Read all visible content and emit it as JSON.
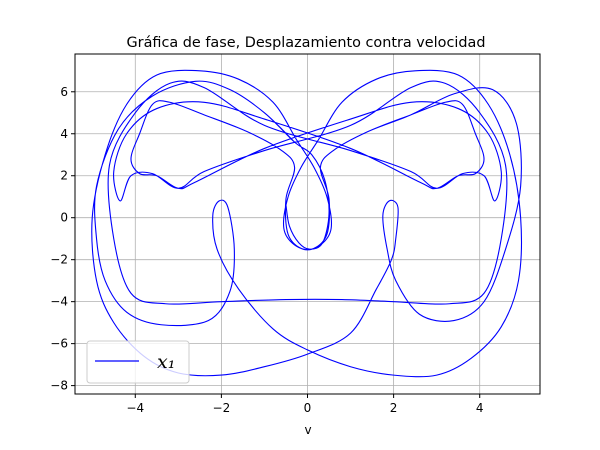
{
  "chart_data": {
    "type": "line",
    "title": "Gráfica de fase, Desplazamiento contra velocidad",
    "xlabel": "v",
    "ylabel": "",
    "xlim": [
      -5.4,
      5.4
    ],
    "ylim": [
      -8.4,
      7.8
    ],
    "xticks": [
      -4,
      -2,
      0,
      2,
      4
    ],
    "yticks": [
      -8,
      -6,
      -4,
      -2,
      0,
      2,
      4,
      6
    ],
    "grid": true,
    "legend_position": "lower-left",
    "series": [
      {
        "name": "x₁",
        "color": "#0000ff",
        "points": [
          [
            -0.5,
            0.6
          ],
          [
            -0.42,
            -0.4
          ],
          [
            -0.2,
            -1.2
          ],
          [
            0.05,
            -1.5
          ],
          [
            0.35,
            -1.2
          ],
          [
            0.5,
            0.2
          ],
          [
            0.4,
            1.8
          ],
          [
            0.1,
            3.0
          ],
          [
            -0.3,
            3.6
          ],
          [
            -1.0,
            5.0
          ],
          [
            -1.8,
            6.1
          ],
          [
            -2.6,
            6.5
          ],
          [
            -3.6,
            5.8
          ],
          [
            -4.4,
            4.2
          ],
          [
            -4.9,
            1.5
          ],
          [
            -4.9,
            -1.0
          ],
          [
            -4.7,
            -3.0
          ],
          [
            -4.2,
            -4.5
          ],
          [
            -3.4,
            -5.1
          ],
          [
            -2.3,
            -4.9
          ],
          [
            -1.8,
            -3.5
          ],
          [
            -1.7,
            -1.5
          ],
          [
            -1.85,
            0.5
          ],
          [
            -2.05,
            0.8
          ],
          [
            -2.2,
            0.1
          ],
          [
            -2.1,
            -1.5
          ],
          [
            -1.6,
            -3.4
          ],
          [
            -0.8,
            -5.3
          ],
          [
            0.0,
            -6.3
          ],
          [
            1.0,
            -7.1
          ],
          [
            2.0,
            -7.5
          ],
          [
            3.0,
            -7.5
          ],
          [
            3.8,
            -6.7
          ],
          [
            4.5,
            -5.2
          ],
          [
            4.9,
            -3.0
          ],
          [
            4.95,
            0.0
          ],
          [
            4.7,
            3.0
          ],
          [
            4.2,
            5.4
          ],
          [
            3.5,
            6.8
          ],
          [
            2.5,
            7.0
          ],
          [
            1.6,
            6.6
          ],
          [
            0.8,
            5.5
          ],
          [
            0.25,
            3.7
          ],
          [
            -0.15,
            2.4
          ],
          [
            -0.45,
            1.0
          ],
          [
            -0.55,
            -0.5
          ],
          [
            -0.3,
            -1.3
          ],
          [
            0.1,
            -1.5
          ],
          [
            0.45,
            -0.8
          ],
          [
            0.5,
            0.9
          ],
          [
            0.3,
            2.4
          ],
          [
            0.6,
            3.2
          ],
          [
            1.4,
            4.1
          ],
          [
            2.4,
            4.9
          ],
          [
            3.4,
            5.9
          ],
          [
            4.3,
            6.1
          ],
          [
            4.85,
            4.5
          ],
          [
            4.95,
            1.5
          ],
          [
            4.6,
            -1.5
          ],
          [
            4.1,
            -4.0
          ],
          [
            3.4,
            -4.9
          ],
          [
            2.6,
            -4.6
          ],
          [
            2.05,
            -3.0
          ],
          [
            1.85,
            -1.5
          ],
          [
            1.75,
            0.1
          ],
          [
            1.9,
            0.8
          ],
          [
            2.1,
            0.5
          ],
          [
            2.05,
            -1.0
          ],
          [
            1.95,
            -2.0
          ],
          [
            1.6,
            -3.4
          ],
          [
            1.0,
            -5.5
          ],
          [
            0.0,
            -6.5
          ],
          [
            -1.0,
            -7.1
          ],
          [
            -2.0,
            -7.5
          ],
          [
            -3.0,
            -7.4
          ],
          [
            -3.8,
            -6.6
          ],
          [
            -4.5,
            -5.0
          ],
          [
            -4.9,
            -3.0
          ],
          [
            -5.0,
            0.0
          ],
          [
            -4.7,
            3.0
          ],
          [
            -4.2,
            5.4
          ],
          [
            -3.5,
            6.8
          ],
          [
            -2.5,
            7.0
          ],
          [
            -1.6,
            6.6
          ],
          [
            -0.8,
            5.5
          ],
          [
            -0.25,
            3.7
          ],
          [
            0.15,
            2.4
          ],
          [
            0.45,
            1.0
          ],
          [
            0.55,
            -0.5
          ],
          [
            0.3,
            -1.3
          ],
          [
            -0.1,
            -1.5
          ],
          [
            -0.45,
            -0.8
          ],
          [
            -0.5,
            0.9
          ],
          [
            -0.3,
            2.4
          ],
          [
            -0.6,
            3.2
          ],
          [
            -1.4,
            4.1
          ],
          [
            -2.4,
            4.9
          ],
          [
            -3.2,
            5.5
          ],
          [
            -3.6,
            5.4
          ],
          [
            -3.9,
            4.0
          ],
          [
            -4.1,
            2.8
          ],
          [
            -3.9,
            2.1
          ],
          [
            -3.5,
            2.0
          ],
          [
            -3.0,
            1.4
          ],
          [
            -2.6,
            1.7
          ],
          [
            -1.0,
            3.3
          ],
          [
            1.0,
            4.7
          ],
          [
            2.4,
            5.5
          ],
          [
            3.5,
            5.2
          ],
          [
            4.2,
            4.0
          ],
          [
            4.5,
            2.2
          ],
          [
            4.35,
            0.8
          ],
          [
            4.1,
            2.0
          ],
          [
            3.6,
            2.1
          ],
          [
            3.0,
            1.4
          ],
          [
            2.4,
            2.2
          ],
          [
            1.0,
            3.2
          ],
          [
            -1.0,
            4.4
          ],
          [
            -2.4,
            6.2
          ],
          [
            -3.2,
            6.4
          ],
          [
            -4.0,
            5.0
          ],
          [
            -4.6,
            2.5
          ],
          [
            -4.5,
            -1.0
          ],
          [
            -4.1,
            -3.6
          ],
          [
            -3.3,
            -4.1
          ],
          [
            -2.0,
            -4.0
          ],
          [
            -0.5,
            -3.9
          ],
          [
            0.8,
            -3.9
          ],
          [
            2.0,
            -4.0
          ],
          [
            3.3,
            -4.1
          ],
          [
            4.1,
            -3.6
          ],
          [
            4.5,
            -1.0
          ],
          [
            4.6,
            2.5
          ],
          [
            4.0,
            5.0
          ],
          [
            3.2,
            6.4
          ],
          [
            2.4,
            6.2
          ],
          [
            1.0,
            4.4
          ],
          [
            -1.0,
            3.2
          ],
          [
            -2.4,
            2.2
          ],
          [
            -3.0,
            1.4
          ],
          [
            -3.6,
            2.1
          ],
          [
            -4.1,
            2.0
          ],
          [
            -4.35,
            0.8
          ],
          [
            -4.5,
            2.2
          ],
          [
            -4.2,
            4.0
          ],
          [
            -3.5,
            5.2
          ],
          [
            -2.4,
            5.5
          ],
          [
            -1.0,
            4.7
          ],
          [
            1.0,
            3.3
          ],
          [
            2.6,
            1.7
          ],
          [
            3.0,
            1.4
          ],
          [
            3.5,
            2.0
          ],
          [
            3.9,
            2.1
          ],
          [
            4.1,
            2.8
          ],
          [
            3.9,
            4.0
          ],
          [
            3.6,
            5.4
          ],
          [
            3.2,
            5.5
          ],
          [
            2.4,
            4.9
          ],
          [
            1.4,
            4.1
          ],
          [
            0.6,
            3.2
          ],
          [
            0.3,
            2.4
          ],
          [
            0.5,
            0.9
          ],
          [
            0.45,
            -0.8
          ],
          [
            0.1,
            -1.5
          ],
          [
            -0.3,
            -1.3
          ],
          [
            -0.55,
            -0.5
          ],
          [
            -0.45,
            1.0
          ],
          [
            -0.15,
            2.4
          ],
          [
            0.25,
            3.7
          ],
          [
            0.8,
            5.5
          ],
          [
            1.6,
            6.6
          ],
          [
            2.5,
            7.0
          ],
          [
            3.5,
            6.8
          ],
          [
            4.2,
            5.4
          ],
          [
            4.7,
            3.0
          ],
          [
            4.95,
            0.0
          ],
          [
            4.9,
            -3.0
          ],
          [
            4.5,
            -5.2
          ],
          [
            3.8,
            -6.7
          ],
          [
            3.0,
            -7.5
          ],
          [
            2.0,
            -7.5
          ],
          [
            1.0,
            -7.1
          ],
          [
            0.0,
            -6.3
          ],
          [
            -0.8,
            -5.3
          ],
          [
            -1.6,
            -3.4
          ],
          [
            -2.1,
            -1.5
          ],
          [
            -2.2,
            0.1
          ],
          [
            -2.05,
            0.8
          ],
          [
            -1.85,
            0.5
          ],
          [
            -1.7,
            -1.5
          ],
          [
            -1.8,
            -3.5
          ],
          [
            -2.3,
            -4.9
          ],
          [
            -3.4,
            -5.1
          ],
          [
            -4.2,
            -4.5
          ],
          [
            -4.7,
            -3.0
          ],
          [
            -4.9,
            -1.0
          ],
          [
            -4.9,
            1.5
          ],
          [
            -4.4,
            4.2
          ],
          [
            -3.6,
            5.8
          ],
          [
            -2.6,
            6.5
          ],
          [
            -1.8,
            6.1
          ],
          [
            -1.0,
            5.0
          ],
          [
            -0.3,
            3.6
          ]
        ]
      }
    ]
  },
  "legend": {
    "label": "x₁"
  }
}
